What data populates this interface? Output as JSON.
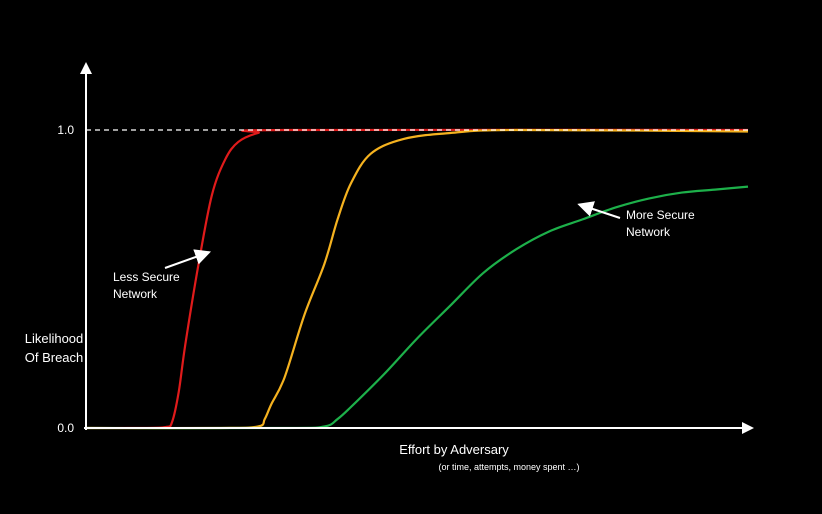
{
  "chart_data": {
    "type": "line",
    "title": "",
    "xlabel": "Effort by Adversary",
    "xlabel_sub": "(or time, attempts, money spent …)",
    "ylabel_line1": "Likelihood",
    "ylabel_line2": "Of Breach",
    "ylim": [
      0,
      1
    ],
    "xlim": [
      0,
      100
    ],
    "y_ticks": [
      "0.0",
      "1.0"
    ],
    "reference_line": {
      "y": 1.0,
      "style": "dashed",
      "color": "#ffffff"
    },
    "colors": {
      "axis": "#ffffff",
      "background": "#000000"
    },
    "series": [
      {
        "color": "#e01b1b",
        "points": [
          [
            0,
            0
          ],
          [
            8,
            0
          ],
          [
            12,
            0.003
          ],
          [
            13,
            0.02
          ],
          [
            14,
            0.12
          ],
          [
            15,
            0.28
          ],
          [
            17,
            0.55
          ],
          [
            19,
            0.78
          ],
          [
            21,
            0.9
          ],
          [
            23,
            0.96
          ],
          [
            26,
            0.99
          ],
          [
            30,
            1.0
          ],
          [
            100,
            1.0
          ]
        ]
      },
      {
        "color": "#f5b21f",
        "points": [
          [
            0,
            0
          ],
          [
            20,
            0
          ],
          [
            26,
            0.005
          ],
          [
            27,
            0.03
          ],
          [
            28,
            0.08
          ],
          [
            30,
            0.17
          ],
          [
            33,
            0.38
          ],
          [
            36,
            0.55
          ],
          [
            38,
            0.7
          ],
          [
            40,
            0.82
          ],
          [
            43,
            0.92
          ],
          [
            48,
            0.97
          ],
          [
            55,
            0.99
          ],
          [
            65,
            1.0
          ],
          [
            100,
            0.995
          ]
        ]
      },
      {
        "color": "#1db04a",
        "points": [
          [
            0,
            0
          ],
          [
            30,
            0
          ],
          [
            36,
            0.005
          ],
          [
            38,
            0.03
          ],
          [
            40,
            0.07
          ],
          [
            45,
            0.18
          ],
          [
            50,
            0.3
          ],
          [
            55,
            0.41
          ],
          [
            60,
            0.52
          ],
          [
            65,
            0.6
          ],
          [
            70,
            0.66
          ],
          [
            75,
            0.7
          ],
          [
            80,
            0.74
          ],
          [
            85,
            0.77
          ],
          [
            90,
            0.79
          ],
          [
            95,
            0.8
          ],
          [
            100,
            0.81
          ]
        ]
      }
    ],
    "annotations": [
      {
        "line1": "Less Secure",
        "line2": "Network",
        "arrow_to": [
          18.6,
          0.59
        ]
      },
      {
        "line1": "More Secure",
        "line2": "Network",
        "arrow_to": [
          74.5,
          0.75
        ]
      }
    ]
  }
}
